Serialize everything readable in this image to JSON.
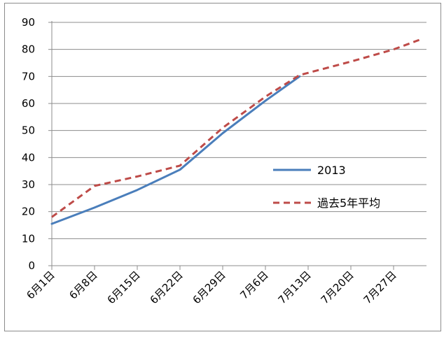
{
  "chart_data": {
    "type": "line",
    "title": "",
    "xlabel": "",
    "ylabel": "",
    "ylim": [
      0,
      90
    ],
    "yticks": [
      0,
      10,
      20,
      30,
      40,
      50,
      60,
      70,
      80,
      90
    ],
    "categories": [
      "6月1日",
      "6月8日",
      "6月15日",
      "6月22日",
      "6月29日",
      "7月6日",
      "7月13日",
      "7月20日",
      "7月27日"
    ],
    "grid": "horizontal",
    "legend_position": "right-middle",
    "series": [
      {
        "name": "2013",
        "color": "#4a7ebb",
        "style": "solid",
        "points": [
          [
            0,
            15.5
          ],
          [
            1,
            21.5
          ],
          [
            2,
            28
          ],
          [
            3,
            35.5
          ],
          [
            4,
            49
          ],
          [
            5,
            61
          ],
          [
            5.8,
            70
          ]
        ]
      },
      {
        "name": "過去5年平均",
        "color": "#be4b48",
        "style": "dashed",
        "points": [
          [
            0,
            18
          ],
          [
            1,
            29.5
          ],
          [
            2,
            33
          ],
          [
            3,
            37
          ],
          [
            4,
            51
          ],
          [
            5,
            62.5
          ],
          [
            5.8,
            70.5
          ],
          [
            7,
            75.5
          ],
          [
            8,
            80
          ],
          [
            8.6,
            83.5
          ]
        ]
      }
    ]
  }
}
